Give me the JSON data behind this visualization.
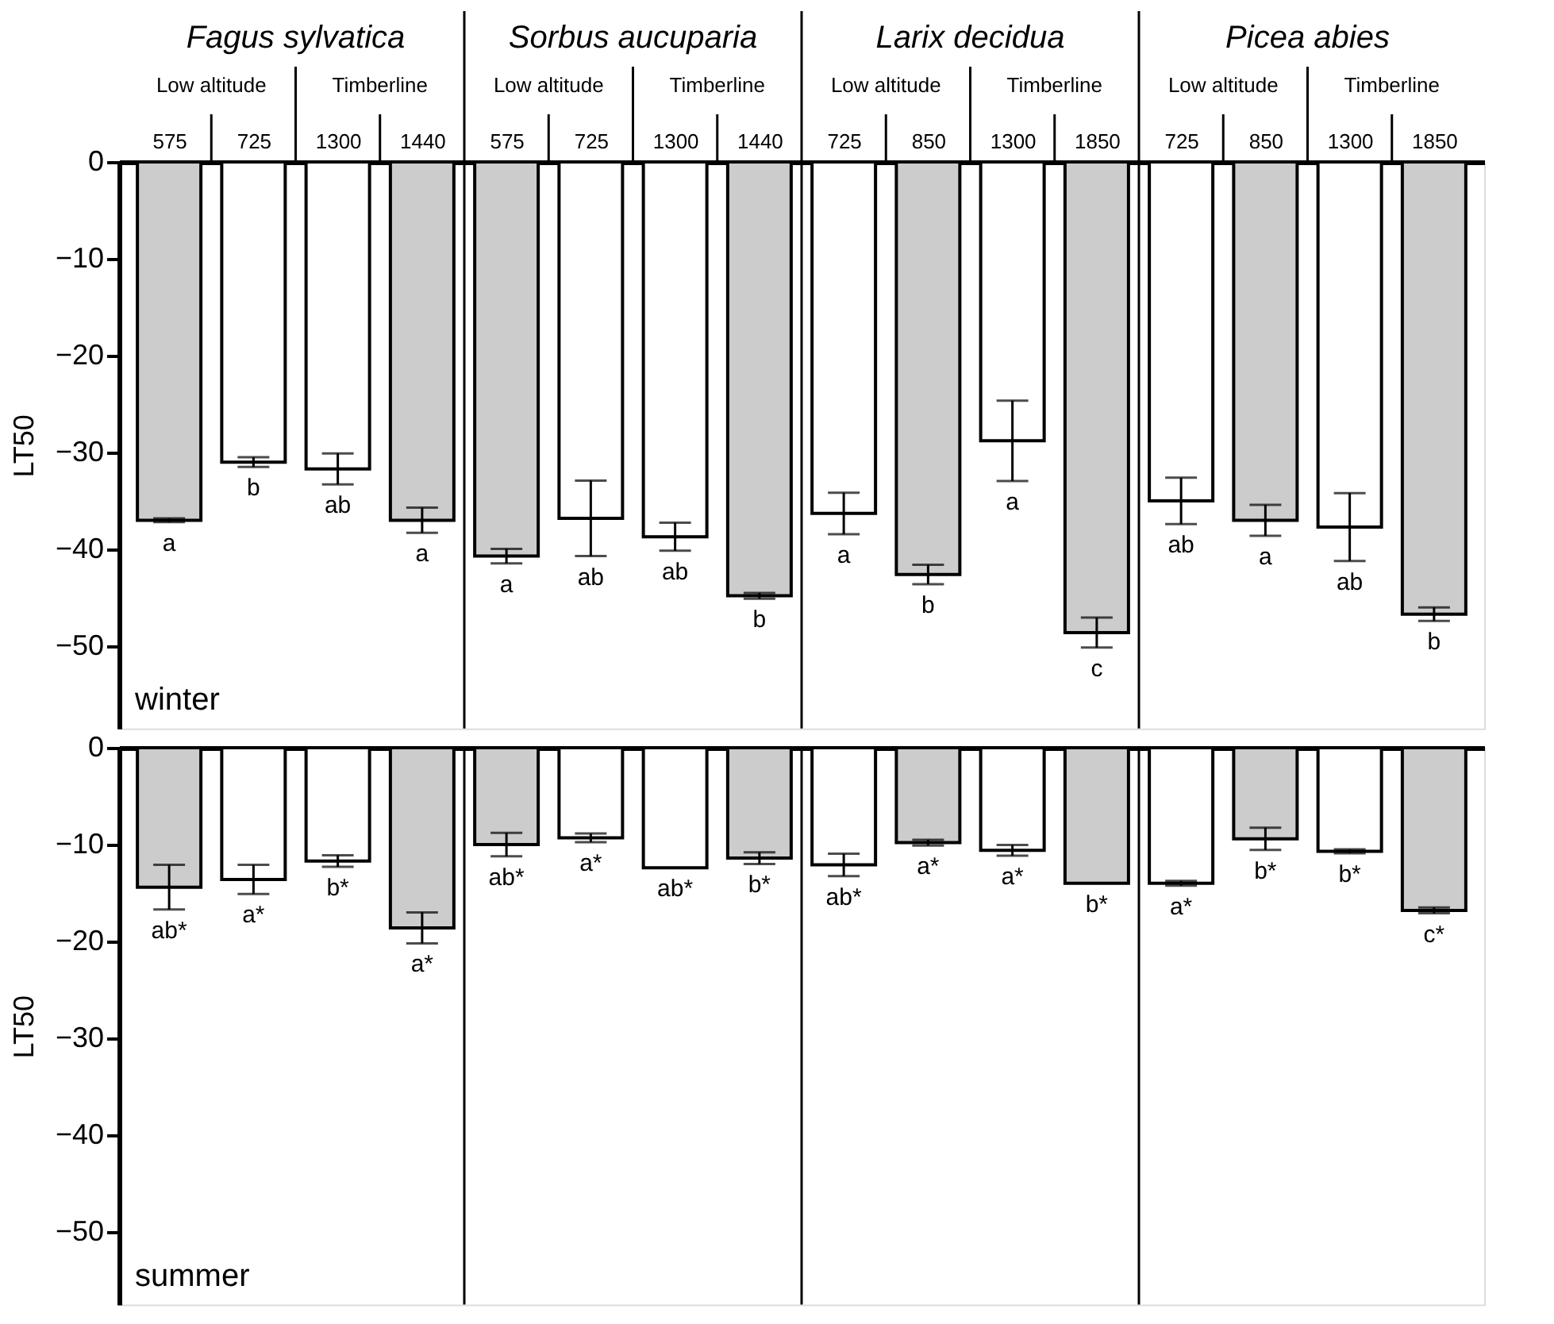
{
  "chart_data": [
    {
      "type": "bar",
      "title": "winter",
      "ylabel": "LT50",
      "categories": [
        "575",
        "725",
        "1300",
        "1440",
        "575",
        "725",
        "1300",
        "1440",
        "725",
        "850",
        "1300",
        "1850",
        "725",
        "850",
        "1300",
        "1850"
      ],
      "values": [
        -37.0,
        -31.0,
        -31.7,
        -37.0,
        -40.7,
        -36.8,
        -38.7,
        -44.8,
        -36.3,
        -42.6,
        -28.8,
        -48.6,
        -35.0,
        -37.0,
        -37.7,
        -46.7
      ],
      "errors": [
        0.2,
        0.5,
        1.6,
        1.3,
        0.75,
        3.9,
        1.45,
        0.3,
        2.15,
        1.0,
        4.15,
        1.55,
        2.4,
        1.6,
        3.5,
        0.7
      ],
      "colors": [
        "#cccccc",
        "#ffffff",
        "#ffffff",
        "#cccccc",
        "#cccccc",
        "#ffffff",
        "#ffffff",
        "#cccccc",
        "#ffffff",
        "#cccccc",
        "#ffffff",
        "#cccccc",
        "#ffffff",
        "#cccccc",
        "#ffffff",
        "#cccccc"
      ],
      "value_labels": [
        "a",
        "b",
        "ab",
        "a",
        "a",
        "ab",
        "ab",
        "b",
        "a",
        "b",
        "a",
        "c",
        "ab",
        "a",
        "ab",
        "b"
      ],
      "annotations": [
        "Fagus sylvatica",
        "Sorbus aucuparia",
        "Larix decidua",
        "Picea abies",
        "Low altitude",
        "Timberline",
        "Low altitude",
        "Timberline",
        "Low altitude",
        "Timberline",
        "Low altitude",
        "Timberline"
      ],
      "ylim": [
        -58.5,
        0
      ],
      "yticks": [
        0,
        -10,
        -20,
        -30,
        -40,
        -50
      ],
      "grid": false
    },
    {
      "type": "bar",
      "title": "summer",
      "ylabel": "LT50",
      "categories": [
        "575",
        "725",
        "1300",
        "1440",
        "575",
        "725",
        "1300",
        "1440",
        "725",
        "850",
        "1300",
        "1850",
        "725",
        "850",
        "1300",
        "1850"
      ],
      "values": [
        -14.4,
        -13.6,
        -11.7,
        -18.6,
        -10.0,
        -9.3,
        -12.4,
        -11.4,
        -12.1,
        -9.8,
        -10.6,
        -14.0,
        -14.0,
        -9.4,
        -10.7,
        -16.8
      ],
      "errors": [
        2.3,
        1.5,
        0.6,
        1.6,
        1.2,
        0.45,
        null,
        0.6,
        1.15,
        0.3,
        0.55,
        null,
        0.25,
        1.15,
        0.2,
        0.3
      ],
      "colors": [
        "#cccccc",
        "#ffffff",
        "#ffffff",
        "#cccccc",
        "#cccccc",
        "#ffffff",
        "#ffffff",
        "#cccccc",
        "#ffffff",
        "#cccccc",
        "#ffffff",
        "#cccccc",
        "#ffffff",
        "#cccccc",
        "#ffffff",
        "#cccccc"
      ],
      "value_labels": [
        "ab*",
        "a*",
        "b*",
        "a*",
        "ab*",
        "a*",
        "ab*",
        "b*",
        "ab*",
        "a*",
        "a*",
        "b*",
        "a*",
        "b*",
        "b*",
        "c*"
      ],
      "ylim": [
        -57.5,
        0
      ],
      "yticks": [
        0,
        -10,
        -20,
        -30,
        -40,
        -50
      ],
      "tick_labels": "y",
      "grid": false
    }
  ]
}
